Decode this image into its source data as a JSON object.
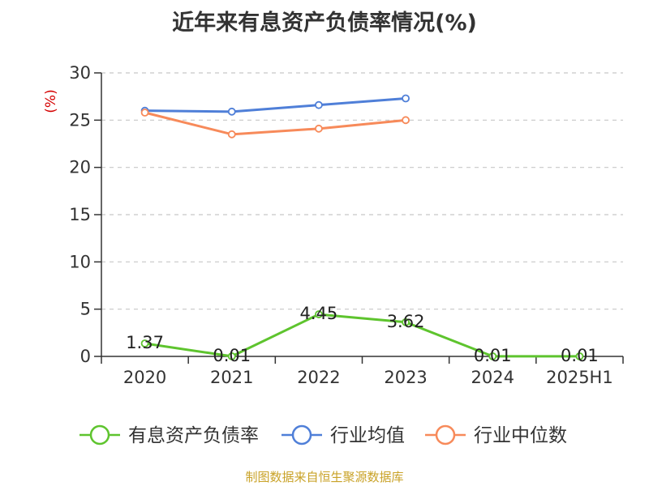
{
  "chart_data": {
    "type": "line",
    "title": "近年来有息资产负债率情况(%)",
    "ylabel": "(%)",
    "categories": [
      "2020",
      "2021",
      "2022",
      "2023",
      "2024",
      "2025H1"
    ],
    "ylim": [
      0,
      30
    ],
    "yticks": [
      0,
      5,
      10,
      15,
      20,
      25,
      30
    ],
    "grid": true,
    "legend_position": "bottom",
    "series": [
      {
        "name": "有息资产负债率",
        "color": "#5ec42e",
        "values": [
          1.37,
          0.01,
          4.45,
          3.62,
          0.01,
          0.01
        ],
        "labels": [
          "1.37",
          "0.01",
          "4.45",
          "3.62",
          "0.01",
          "0.01"
        ]
      },
      {
        "name": "行业均值",
        "color": "#4f7fd8",
        "values": [
          26.0,
          25.9,
          26.6,
          27.3,
          null,
          null
        ]
      },
      {
        "name": "行业中位数",
        "color": "#f78a5a",
        "values": [
          25.8,
          23.5,
          24.1,
          25.0,
          null,
          null
        ]
      }
    ]
  },
  "source_note": "制图数据来自恒生聚源数据库"
}
